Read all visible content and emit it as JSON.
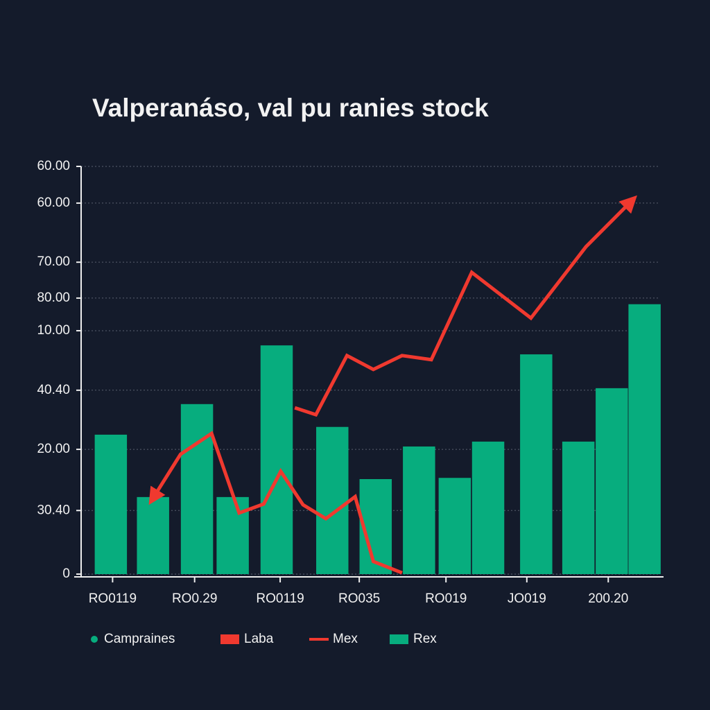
{
  "chart_data": {
    "type": "bar+line",
    "title": "Valperanáso, val pu ranies stock",
    "xlim": [
      0,
      100
    ],
    "xticks": [
      {
        "value": 6.2,
        "label": "RO0119"
      },
      {
        "value": 20.2,
        "label": "RO0.29"
      },
      {
        "value": 34.8,
        "label": "RO0119"
      },
      {
        "value": 48.3,
        "label": "RO035"
      },
      {
        "value": 63.1,
        "label": "RO019"
      },
      {
        "value": 76.9,
        "label": "JO019"
      },
      {
        "value": 90.8,
        "label": "200.20"
      }
    ],
    "ylim": [
      0,
      100
    ],
    "yticks": [
      {
        "value": 100,
        "label": "60.00"
      },
      {
        "value": 91,
        "label": "60.00"
      },
      {
        "value": 76.5,
        "label": "70.00"
      },
      {
        "value": 67.7,
        "label": "80.00"
      },
      {
        "value": 59.7,
        "label": "10.00"
      },
      {
        "value": 45.1,
        "label": "40.40"
      },
      {
        "value": 30.6,
        "label": "20.00"
      },
      {
        "value": 15.6,
        "label": "30.40"
      },
      0
    ],
    "grid": true,
    "bar_width": 5.5,
    "bars": {
      "color": "#07ad7e",
      "x": [
        5.9,
        13.1,
        20.6,
        26.7,
        34.2,
        43.7,
        51.1,
        58.5,
        64.6,
        70.3,
        78.5,
        85.7,
        91.4,
        97.0
      ],
      "values": [
        34.2,
        18.9,
        41.7,
        18.9,
        56.1,
        36.1,
        23.3,
        31.3,
        23.6,
        32.5,
        53.9,
        32.5,
        45.6,
        66.2
      ]
    },
    "lines": [
      {
        "color": "#f0392f",
        "arrow": "end",
        "x": [
          37.3,
          40.9,
          46.2,
          50.7,
          55.6,
          60.6,
          67.5,
          77.6,
          87.0,
          94.9
        ],
        "values": [
          40.8,
          39.1,
          53.6,
          50.2,
          53.6,
          52.6,
          74.0,
          62.8,
          80.3,
          91.7
        ]
      },
      {
        "color": "#f0392f",
        "arrow": "start",
        "x": [
          13.0,
          17.8,
          23.1,
          27.8,
          32.0,
          34.9,
          38.7,
          42.6,
          47.6,
          50.7,
          55.6
        ],
        "values": [
          18.4,
          29.4,
          34.5,
          15.0,
          17.2,
          25.2,
          17.0,
          13.6,
          19.0,
          3.1,
          0.3
        ]
      }
    ],
    "legend_items": [
      {
        "label": "Campraines",
        "marker": "dot",
        "color": "#07ad7e"
      },
      {
        "label": "Laba",
        "marker": "rect",
        "color": "#f0392f"
      },
      {
        "label": "Mex",
        "marker": "line",
        "color": "#f0392f"
      },
      {
        "label": "Rex",
        "marker": "rect",
        "color": "#07ad7e"
      }
    ]
  }
}
